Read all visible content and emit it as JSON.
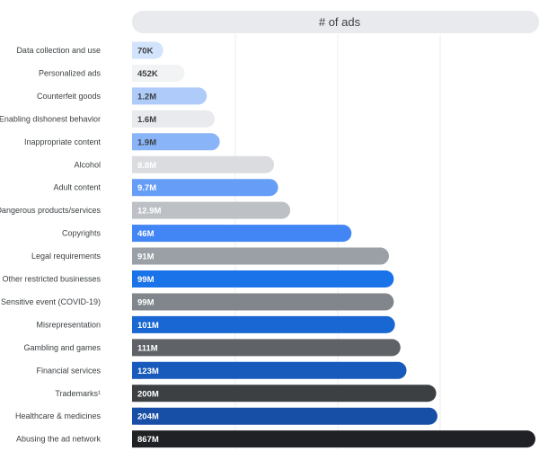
{
  "chart_data": {
    "type": "bar",
    "orientation": "horizontal",
    "title": "# of ads",
    "xlabel": "",
    "ylabel": "",
    "grid": true,
    "legend": "none",
    "categories": [
      "Data collection and use",
      "Personalized ads",
      "Counterfeit goods",
      "Enabling dishonest behavior",
      "Inappropriate content",
      "Alcohol",
      "Adult content",
      "Dangerous products/services",
      "Copyrights",
      "Legal requirements",
      "Other restricted businesses",
      "Sensitive event (COVID-19)",
      "Misrepresentation",
      "Gambling and games",
      "Financial services",
      "Trademarks¹",
      "Healthcare & medicines",
      "Abusing the ad network"
    ],
    "value_labels": [
      "70K",
      "452K",
      "1.2M",
      "1.6M",
      "1.9M",
      "8.8M",
      "9.7M",
      "12.9M",
      "46M",
      "91M",
      "99M",
      "99M",
      "101M",
      "111M",
      "123M",
      "200M",
      "204M",
      "867M"
    ],
    "values": [
      70000,
      452000,
      1200000,
      1600000,
      1900000,
      8800000,
      9700000,
      12900000,
      46000000,
      91000000,
      99000000,
      99000000,
      101000000,
      111000000,
      123000000,
      200000000,
      204000000,
      867000000
    ],
    "bar_colors": [
      "#d2e3fc",
      "#f1f3f4",
      "#aecbfa",
      "#e8eaed",
      "#8ab4f8",
      "#dadce0",
      "#669df6",
      "#bdc1c6",
      "#4285f4",
      "#9aa0a6",
      "#1a73e8",
      "#80868b",
      "#1967d2",
      "#5f6368",
      "#185abc",
      "#3c4043",
      "#174ea6",
      "#202124"
    ],
    "label_colors": [
      "#3c4043",
      "#3c4043",
      "#3c4043",
      "#3c4043",
      "#3c4043",
      "#ffffff",
      "#ffffff",
      "#ffffff",
      "#ffffff",
      "#ffffff",
      "#ffffff",
      "#ffffff",
      "#ffffff",
      "#ffffff",
      "#ffffff",
      "#ffffff",
      "#ffffff",
      "#ffffff"
    ],
    "header_color": "#e8eaed",
    "grid_color": "#ececec",
    "text_color": "#3c4043"
  }
}
